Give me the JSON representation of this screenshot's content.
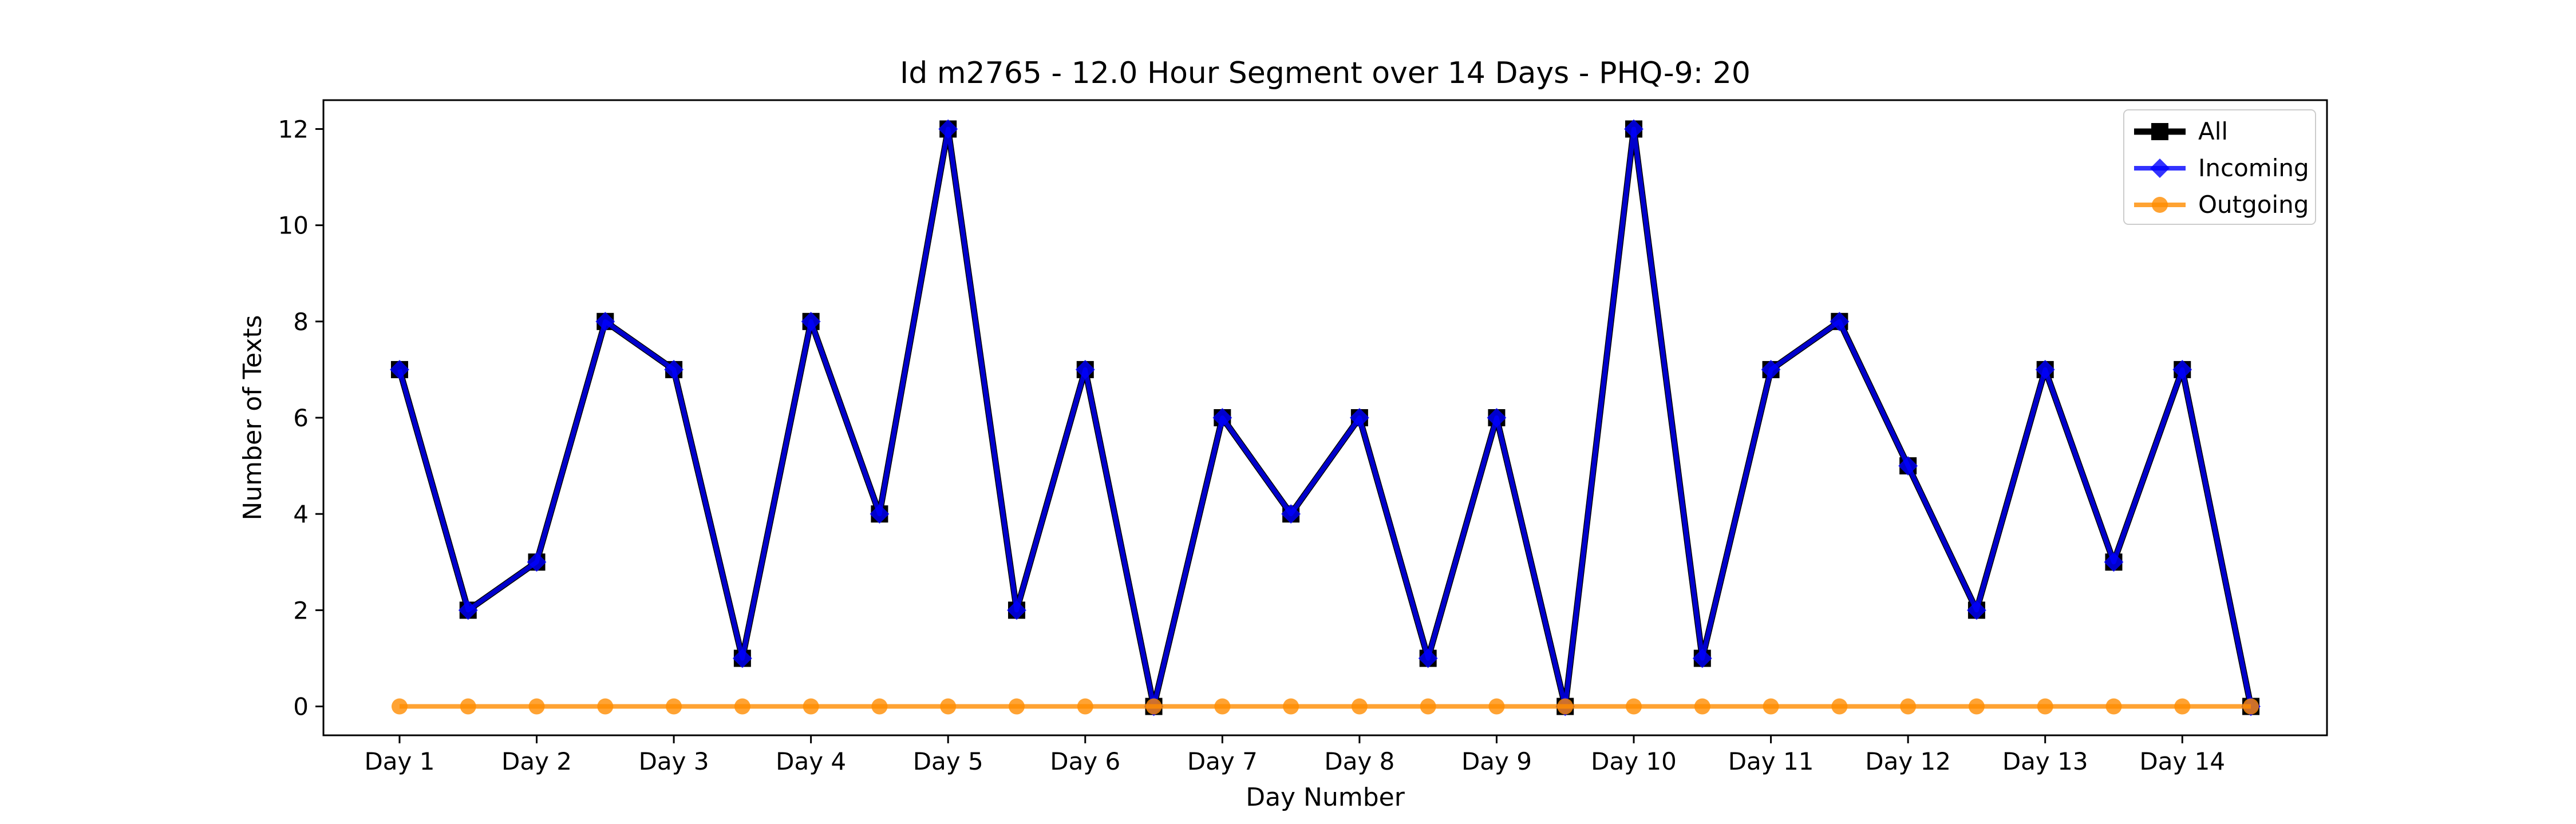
{
  "chart_data": {
    "type": "line",
    "title": "Id m2765 - 12.0 Hour Segment over 14 Days - PHQ-9: 20",
    "xlabel": "Day Number",
    "ylabel": "Number of Texts",
    "x_ticks": [
      "Day 1",
      "Day 2",
      "Day 3",
      "Day 4",
      "Day 5",
      "Day 6",
      "Day 7",
      "Day 8",
      "Day 9",
      "Day 10",
      "Day 11",
      "Day 12",
      "Day 13",
      "Day 14"
    ],
    "y_ticks": [
      0,
      2,
      4,
      6,
      8,
      10,
      12
    ],
    "ylim": [
      -0.6,
      12.6
    ],
    "grid": false,
    "legend_position": "top-right",
    "x": [
      1,
      1.5,
      2,
      2.5,
      3,
      3.5,
      4,
      4.5,
      5,
      5.5,
      6,
      6.5,
      7,
      7.5,
      8,
      8.5,
      9,
      9.5,
      10,
      10.5,
      11,
      11.5,
      12,
      12.5,
      13,
      13.5,
      14,
      14.5
    ],
    "series": [
      {
        "name": "All",
        "color": "#000000",
        "marker": "square",
        "values": [
          7,
          2,
          3,
          8,
          7,
          1,
          8,
          4,
          12,
          2,
          7,
          0,
          6,
          4,
          6,
          1,
          6,
          0,
          12,
          1,
          7,
          8,
          5,
          2,
          7,
          3,
          7,
          0
        ]
      },
      {
        "name": "Incoming",
        "color": "#0000ff",
        "marker": "diamond",
        "values": [
          7,
          2,
          3,
          8,
          7,
          1,
          8,
          4,
          12,
          2,
          7,
          0,
          6,
          4,
          6,
          1,
          6,
          0,
          12,
          1,
          7,
          8,
          5,
          2,
          7,
          3,
          7,
          0
        ]
      },
      {
        "name": "Outgoing",
        "color": "#ff8c00",
        "marker": "circle",
        "values": [
          0,
          0,
          0,
          0,
          0,
          0,
          0,
          0,
          0,
          0,
          0,
          0,
          0,
          0,
          0,
          0,
          0,
          0,
          0,
          0,
          0,
          0,
          0,
          0,
          0,
          0,
          0,
          0
        ]
      }
    ]
  }
}
